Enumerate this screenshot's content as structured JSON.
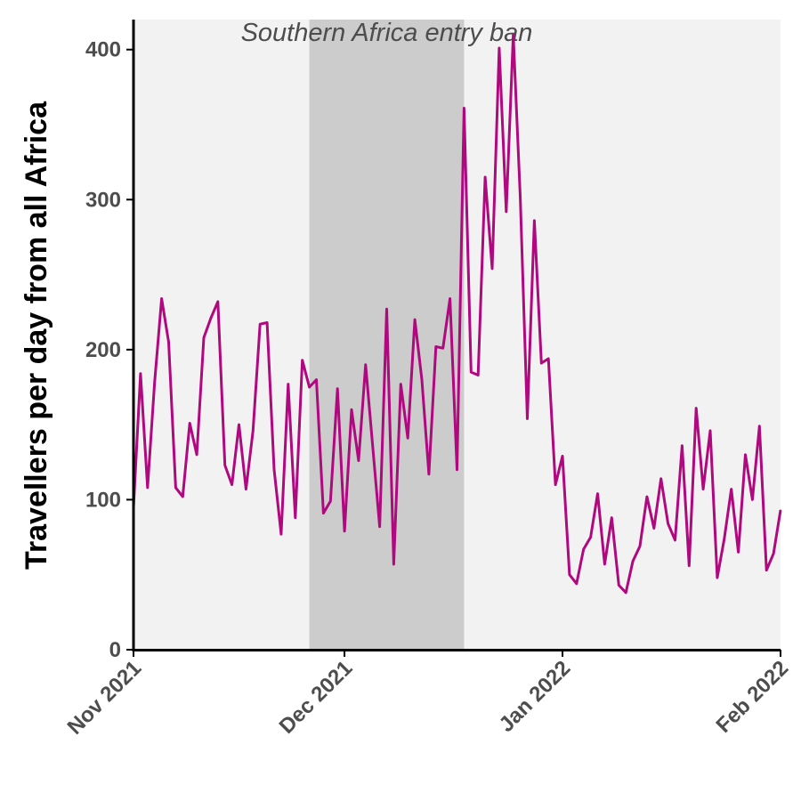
{
  "chart_data": {
    "type": "line",
    "ylabel": "Travellers per day from all Africa",
    "xlabel": "",
    "ylim": [
      0,
      420
    ],
    "yticks": [
      0,
      100,
      200,
      300,
      400
    ],
    "x_range": [
      "2021-11-01",
      "2022-02-01"
    ],
    "xticks": [
      {
        "date": "2021-11-01",
        "label": "Nov 2021"
      },
      {
        "date": "2021-12-01",
        "label": "Dec 2021"
      },
      {
        "date": "2022-01-01",
        "label": "Jan 2022"
      },
      {
        "date": "2022-02-01",
        "label": "Feb 2022"
      }
    ],
    "annotation": {
      "label": "Southern Africa entry ban",
      "start": "2021-11-26",
      "end": "2021-12-18"
    },
    "grid": false,
    "series": [
      {
        "color": "#b0097f",
        "x": [
          "2021-11-01",
          "2021-11-02",
          "2021-11-03",
          "2021-11-04",
          "2021-11-05",
          "2021-11-06",
          "2021-11-07",
          "2021-11-08",
          "2021-11-09",
          "2021-11-10",
          "2021-11-11",
          "2021-11-12",
          "2021-11-13",
          "2021-11-14",
          "2021-11-15",
          "2021-11-16",
          "2021-11-17",
          "2021-11-18",
          "2021-11-19",
          "2021-11-20",
          "2021-11-21",
          "2021-11-22",
          "2021-11-23",
          "2021-11-24",
          "2021-11-25",
          "2021-11-26",
          "2021-11-27",
          "2021-11-28",
          "2021-11-29",
          "2021-11-30",
          "2021-12-01",
          "2021-12-02",
          "2021-12-03",
          "2021-12-04",
          "2021-12-05",
          "2021-12-06",
          "2021-12-07",
          "2021-12-08",
          "2021-12-09",
          "2021-12-10",
          "2021-12-11",
          "2021-12-12",
          "2021-12-13",
          "2021-12-14",
          "2021-12-15",
          "2021-12-16",
          "2021-12-17",
          "2021-12-18",
          "2021-12-19",
          "2021-12-20",
          "2021-12-21",
          "2021-12-22",
          "2021-12-23",
          "2021-12-24",
          "2021-12-25",
          "2021-12-26",
          "2021-12-27",
          "2021-12-28",
          "2021-12-29",
          "2021-12-30",
          "2021-12-31",
          "2022-01-01",
          "2022-01-02",
          "2022-01-03",
          "2022-01-04",
          "2022-01-05",
          "2022-01-06",
          "2022-01-07",
          "2022-01-08",
          "2022-01-09",
          "2022-01-10",
          "2022-01-11",
          "2022-01-12",
          "2022-01-13",
          "2022-01-14",
          "2022-01-15",
          "2022-01-16",
          "2022-01-17",
          "2022-01-18",
          "2022-01-19",
          "2022-01-20",
          "2022-01-21",
          "2022-01-22",
          "2022-01-23",
          "2022-01-24",
          "2022-01-25",
          "2022-01-26",
          "2022-01-27",
          "2022-01-28",
          "2022-01-29",
          "2022-01-30",
          "2022-01-31",
          "2022-02-01"
        ],
        "values": [
          95,
          184,
          108,
          178,
          234,
          205,
          108,
          102,
          151,
          130,
          208,
          221,
          232,
          123,
          110,
          150,
          107,
          146,
          217,
          218,
          120,
          77,
          177,
          88,
          193,
          175,
          180,
          91,
          99,
          174,
          79,
          160,
          126,
          190,
          136,
          82,
          227,
          57,
          177,
          141,
          220,
          180,
          117,
          202,
          201,
          234,
          120,
          361,
          185,
          183,
          315,
          254,
          401,
          292,
          410,
          301,
          154,
          286,
          191,
          194,
          110,
          129,
          50,
          44,
          67,
          75,
          104,
          57,
          88,
          43,
          38,
          59,
          69,
          102,
          81,
          114,
          84,
          73,
          136,
          56,
          161,
          107,
          146,
          48,
          74,
          107,
          65,
          130,
          100,
          149,
          53,
          64,
          93
        ]
      }
    ]
  }
}
